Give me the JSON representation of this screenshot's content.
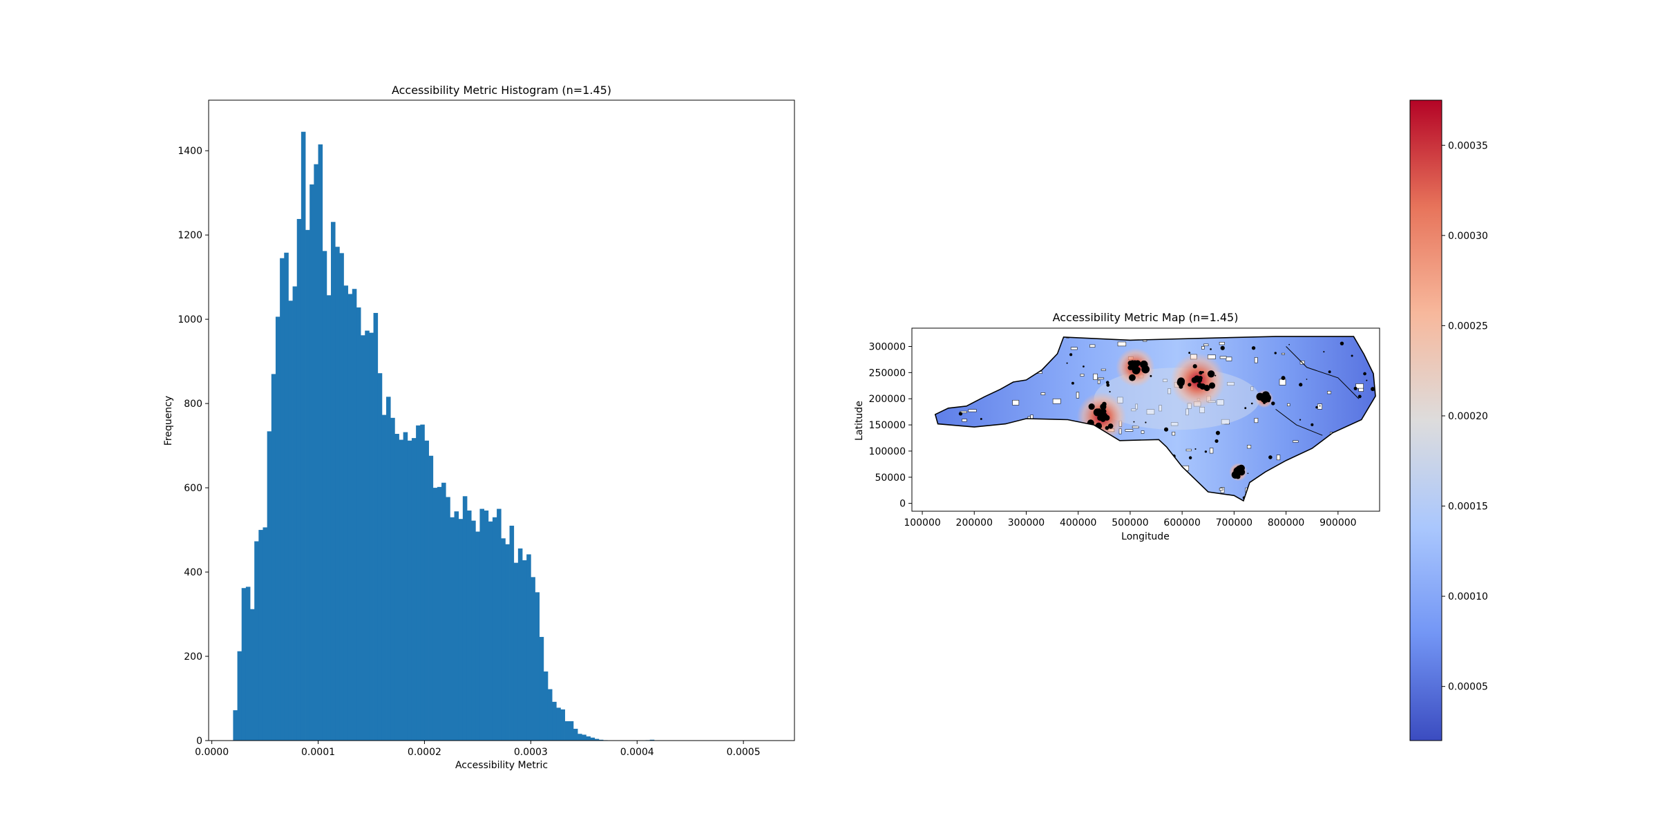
{
  "histogram": {
    "title": "Accessibility Metric Histogram (n=1.45)",
    "xlabel": "Accessibility Metric",
    "ylabel": "Frequency"
  },
  "map": {
    "title": "Accessibility Metric Map (n=1.45)",
    "xlabel": "Longitude",
    "ylabel": "Latitude"
  },
  "colorbar": {
    "cmap": "coolwarm",
    "range": [
      2e-05,
      0.000375
    ],
    "ticks": [
      5e-05,
      0.0001,
      0.00015,
      0.0002,
      0.00025,
      0.0003,
      0.00035
    ],
    "tick_labels": [
      "0.00005",
      "0.00010",
      "0.00015",
      "0.00020",
      "0.00025",
      "0.00030",
      "0.00035"
    ],
    "colors": [
      "#3b4cc0",
      "#7396f5",
      "#aac7fd",
      "#dddcdc",
      "#f7b89c",
      "#e7745b",
      "#b40426"
    ]
  },
  "chart_data": [
    {
      "type": "bar",
      "subtype": "histogram",
      "title": "Accessibility Metric Histogram (n=1.45)",
      "xlabel": "Accessibility Metric",
      "ylabel": "Frequency",
      "color": "#1f77b4",
      "bin_start": 2e-05,
      "bin_width": 4e-06,
      "xlim": [
        -3e-06,
        0.000548
      ],
      "ylim": [
        0,
        1520
      ],
      "xticks": [
        0,
        0.0001,
        0.0002,
        0.0003,
        0.0004,
        0.0005
      ],
      "xtick_labels": [
        "0.0000",
        "0.0001",
        "0.0002",
        "0.0003",
        "0.0004",
        "0.0005"
      ],
      "yticks": [
        0,
        200,
        400,
        600,
        800,
        1000,
        1200,
        1400
      ],
      "ytick_labels": [
        "0",
        "200",
        "400",
        "600",
        "800",
        "1000",
        "1200",
        "1400"
      ],
      "values": [
        72,
        212,
        362,
        365,
        312,
        473,
        500,
        506,
        734,
        870,
        1006,
        1145,
        1158,
        1044,
        1078,
        1238,
        1445,
        1212,
        1320,
        1368,
        1415,
        1162,
        1057,
        1231,
        1172,
        1157,
        1080,
        1060,
        1072,
        1028,
        962,
        973,
        968,
        1015,
        872,
        773,
        816,
        766,
        728,
        714,
        732,
        712,
        718,
        748,
        750,
        712,
        676,
        600,
        602,
        612,
        578,
        530,
        544,
        526,
        580,
        546,
        522,
        496,
        550,
        546,
        520,
        530,
        550,
        480,
        466,
        510,
        422,
        456,
        428,
        442,
        388,
        352,
        246,
        164,
        122,
        92,
        78,
        74,
        46,
        46,
        28,
        16,
        14,
        10,
        7,
        4,
        2,
        1,
        0,
        0,
        0,
        0,
        0,
        0,
        0,
        0,
        0,
        1,
        2
      ]
    },
    {
      "type": "scatter",
      "subtype": "choropleth-map",
      "title": "Accessibility Metric Map (n=1.45)",
      "xlabel": "Longitude",
      "ylabel": "Latitude",
      "xlim": [
        80000,
        980000
      ],
      "ylim": [
        -15000,
        335000
      ],
      "xticks": [
        100000,
        200000,
        300000,
        400000,
        500000,
        600000,
        700000,
        800000,
        900000
      ],
      "xtick_labels": [
        "100000",
        "200000",
        "300000",
        "400000",
        "500000",
        "600000",
        "700000",
        "800000",
        "900000"
      ],
      "yticks": [
        0,
        50000,
        100000,
        150000,
        200000,
        250000,
        300000
      ],
      "ytick_labels": [
        "0",
        "50000",
        "100000",
        "150000",
        "200000",
        "250000",
        "300000"
      ],
      "outline": [
        [
          130000,
          152000
        ],
        [
          125000,
          170000
        ],
        [
          150000,
          182000
        ],
        [
          185000,
          186000
        ],
        [
          220000,
          204000
        ],
        [
          250000,
          218000
        ],
        [
          275000,
          232000
        ],
        [
          300000,
          236000
        ],
        [
          330000,
          255000
        ],
        [
          360000,
          286000
        ],
        [
          372000,
          318000
        ],
        [
          500000,
          312000
        ],
        [
          650000,
          316000
        ],
        [
          780000,
          319000
        ],
        [
          930000,
          319000
        ],
        [
          950000,
          285000
        ],
        [
          968000,
          248000
        ],
        [
          972000,
          205000
        ],
        [
          945000,
          160000
        ],
        [
          890000,
          135000
        ],
        [
          850000,
          105000
        ],
        [
          800000,
          82000
        ],
        [
          760000,
          60000
        ],
        [
          730000,
          40000
        ],
        [
          718000,
          5000
        ],
        [
          700000,
          15000
        ],
        [
          650000,
          22000
        ],
        [
          600000,
          70000
        ],
        [
          570000,
          108000
        ],
        [
          555000,
          122000
        ],
        [
          480000,
          120000
        ],
        [
          430000,
          150000
        ],
        [
          380000,
          160000
        ],
        [
          300000,
          162000
        ],
        [
          260000,
          152000
        ],
        [
          200000,
          146000
        ]
      ],
      "hotspots": [
        {
          "x": 445000,
          "y": 165000,
          "r": 38000,
          "level": 0.00036
        },
        {
          "x": 510000,
          "y": 260000,
          "r": 30000,
          "level": 0.00032
        },
        {
          "x": 630000,
          "y": 235000,
          "r": 42000,
          "level": 0.00035
        },
        {
          "x": 708000,
          "y": 60000,
          "r": 14000,
          "level": 0.00022
        },
        {
          "x": 758000,
          "y": 200000,
          "r": 14000,
          "level": 0.0002
        }
      ]
    }
  ]
}
